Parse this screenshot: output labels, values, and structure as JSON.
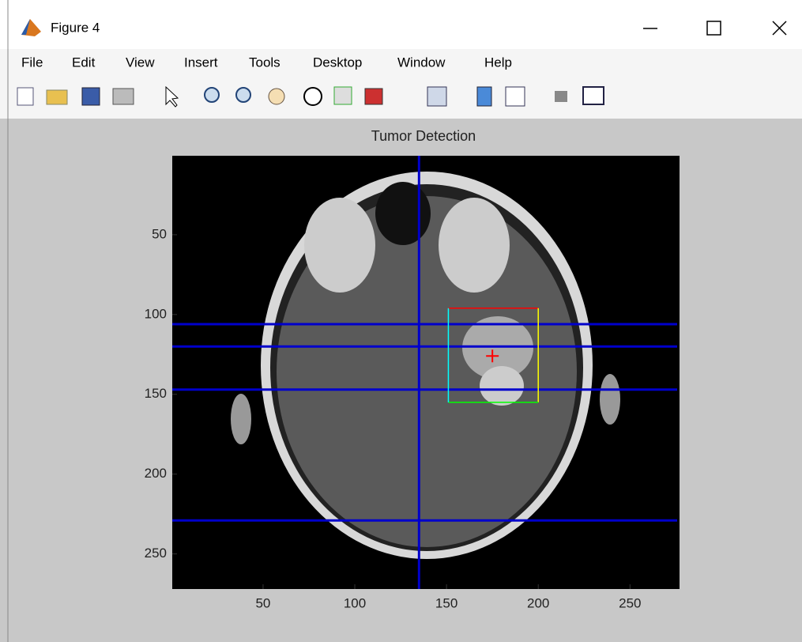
{
  "window": {
    "title": "Figure 4",
    "menu": [
      "File",
      "Edit",
      "View",
      "Insert",
      "Tools",
      "Desktop",
      "Window",
      "Help"
    ]
  },
  "axes": {
    "title": "Tumor Detection",
    "xlim": [
      0.5,
      277
    ],
    "ylim": [
      0.5,
      272
    ],
    "xticks": [
      50,
      100,
      150,
      200,
      250
    ],
    "yticks": [
      50,
      100,
      150,
      200,
      250
    ],
    "hlines": [
      106,
      120,
      147,
      229
    ],
    "vlines": [
      135
    ],
    "line_color": "#0000cc",
    "box": {
      "x": [
        151,
        200
      ],
      "y": [
        96,
        155
      ],
      "edge_colors": [
        "#ff0000",
        "#ffff00",
        "#00ff00",
        "#00ffff"
      ]
    },
    "marker": {
      "x": 175,
      "y": 126,
      "color": "#ff0000"
    }
  }
}
